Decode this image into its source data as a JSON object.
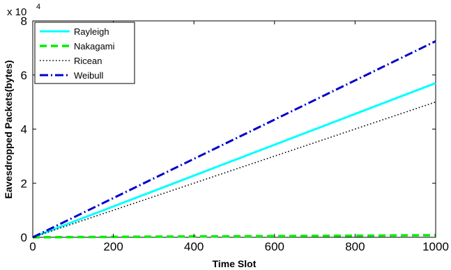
{
  "chart_data": {
    "type": "line",
    "title": "",
    "xlabel": "Time Slot",
    "ylabel": "Eavesdropped Packets(bytes)",
    "xlim": [
      0,
      1000
    ],
    "ylim": [
      0,
      80000
    ],
    "x_ticks": [
      0,
      200,
      400,
      600,
      800,
      1000
    ],
    "y_ticks": [
      0,
      20000,
      40000,
      60000,
      80000
    ],
    "y_tick_labels": [
      "0",
      "2",
      "4",
      "6",
      "8"
    ],
    "y_exponent_base": "x 10",
    "y_exponent_power": "4",
    "grid": false,
    "legend_position": "top-left",
    "series": [
      {
        "name": "Rayleigh",
        "color": "#00ffff",
        "style": "solid",
        "x": [
          0,
          1000
        ],
        "y": [
          0,
          57000
        ]
      },
      {
        "name": "Nakagami",
        "color": "#00ee00",
        "style": "dashed",
        "x": [
          0,
          200,
          400,
          600,
          800,
          1000
        ],
        "y": [
          0,
          150,
          300,
          450,
          600,
          800
        ]
      },
      {
        "name": "Ricean",
        "color": "#000000",
        "style": "dotted",
        "x": [
          0,
          1000
        ],
        "y": [
          0,
          50000
        ]
      },
      {
        "name": "Weibull",
        "color": "#0000cc",
        "style": "dashdot",
        "x": [
          0,
          1000
        ],
        "y": [
          0,
          72500
        ]
      }
    ]
  }
}
